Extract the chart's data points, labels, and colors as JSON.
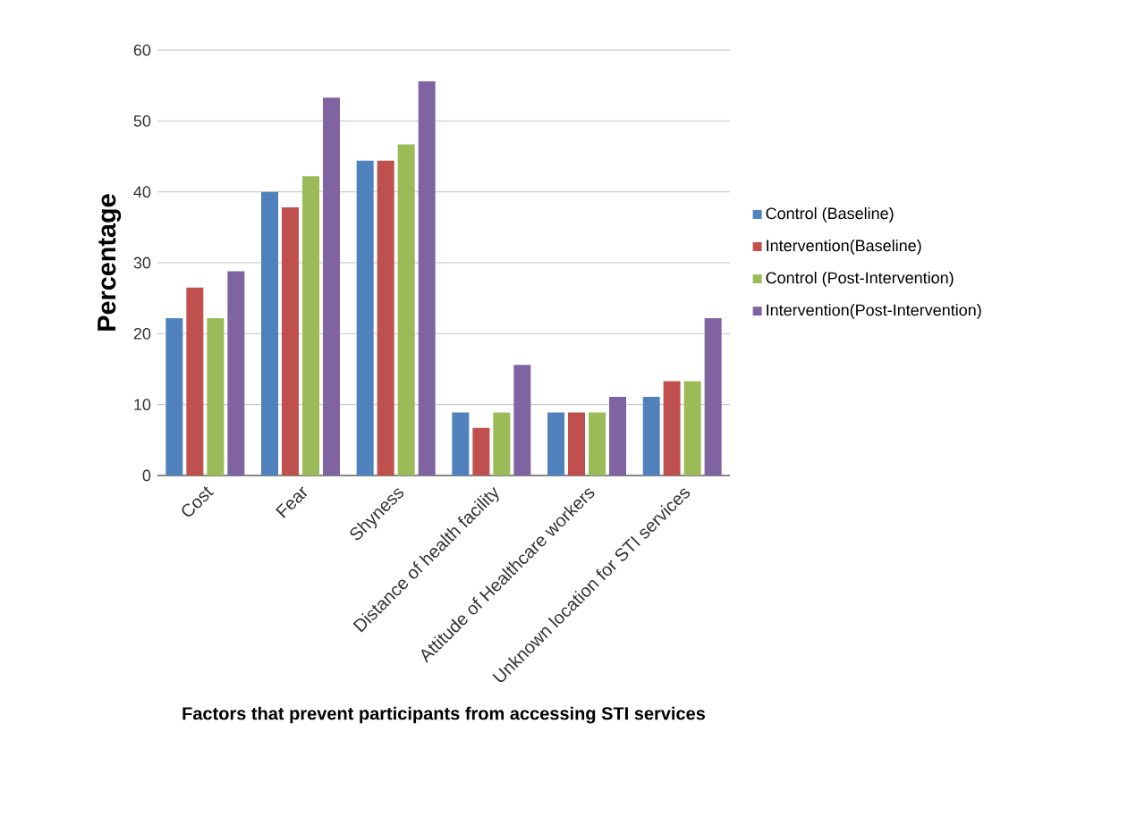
{
  "chart_data": {
    "type": "bar",
    "xlabel": "Factors  that prevent participants from accessing STI services",
    "ylabel": "Percentage",
    "categories": [
      "Cost",
      "Fear",
      "Shyness",
      "Distance of health facility",
      "Attitude of Healthcare workers",
      "Unknown location for  STI services"
    ],
    "series": [
      {
        "name": "Control (Baseline)",
        "color": "#4f81bd",
        "values": [
          22.2,
          40,
          44.4,
          8.9,
          8.9,
          11.1
        ]
      },
      {
        "name": "Intervention(Baseline)",
        "color": "#c0504d",
        "values": [
          26.5,
          37.8,
          44.4,
          6.7,
          8.9,
          13.3
        ]
      },
      {
        "name": "Control (Post-Intervention)",
        "color": "#9bbb59",
        "values": [
          22.2,
          42.2,
          46.7,
          8.9,
          8.9,
          13.3
        ]
      },
      {
        "name": "Intervention(Post-Intervention)",
        "color": "#8064a2",
        "values": [
          28.8,
          53.3,
          55.6,
          15.6,
          11.1,
          22.2
        ]
      }
    ],
    "ylim": [
      0,
      60
    ],
    "yticks": [
      0,
      10,
      20,
      30,
      40,
      50,
      60
    ],
    "grid": "y",
    "legend": "right"
  }
}
